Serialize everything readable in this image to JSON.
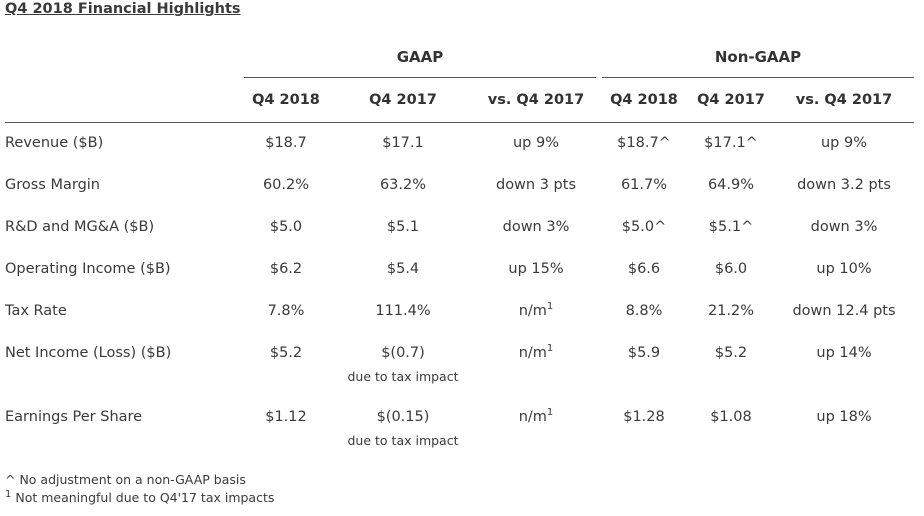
{
  "title": "Q4 2018 Financial Highlights",
  "groups": {
    "gaap": "GAAP",
    "non_gaap": "Non-GAAP"
  },
  "columns": [
    "Q4 2018",
    "Q4 2017",
    "vs. Q4 2017",
    "Q4 2018",
    "Q4 2017",
    "vs. Q4 2017"
  ],
  "rows": [
    {
      "label": "Revenue ($B)",
      "cells": [
        "$18.7",
        "$17.1",
        "up 9%",
        "$18.7^",
        "$17.1^",
        "up 9%"
      ]
    },
    {
      "label": "Gross Margin",
      "cells": [
        "60.2%",
        "63.2%",
        "down 3 pts",
        "61.7%",
        "64.9%",
        "down 3.2 pts"
      ]
    },
    {
      "label": "R&D and MG&A ($B)",
      "cells": [
        "$5.0",
        "$5.1",
        "down 3%",
        "$5.0^",
        "$5.1^",
        "down 3%"
      ]
    },
    {
      "label": "Operating Income ($B)",
      "cells": [
        "$6.2",
        "$5.4",
        "up 15%",
        "$6.6",
        "$6.0",
        "up 10%"
      ]
    },
    {
      "label": "Tax Rate",
      "cells": [
        "7.8%",
        "111.4%",
        "n/m",
        "8.8%",
        "21.2%",
        "down 12.4 pts"
      ]
    },
    {
      "label": "Net Income (Loss) ($B)",
      "cells": [
        "$5.2",
        "$(0.7)",
        "n/m",
        "$5.9",
        "$5.2",
        "up 14%"
      ],
      "note": "due to tax impact"
    },
    {
      "label": "Earnings Per Share",
      "cells": [
        "$1.12",
        "$(0.15)",
        "n/m",
        "$1.28",
        "$1.08",
        "up 18%"
      ],
      "note": "due to tax impact"
    }
  ],
  "superscript": "1",
  "footnotes": {
    "caret": "^ No adjustment on a non-GAAP basis",
    "one_mark": "1",
    "one_text": " Not meaningful due to Q4'17 tax impacts"
  }
}
